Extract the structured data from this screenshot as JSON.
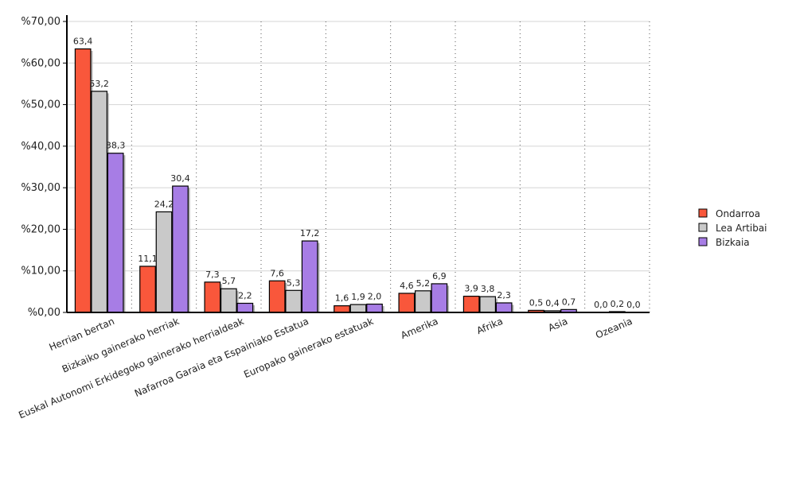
{
  "chart_data": {
    "type": "bar",
    "categories": [
      "Herrian bertan",
      "Bizkaiko gainerako herriak",
      "Euskal Autonomi Erkidegoko gainerako herrialdeak",
      "Nafarroa Garaia eta Espainiako Estatua",
      "Europako gainerako estatuak",
      "Amerika",
      "Afrika",
      "Asia",
      "Ozeania"
    ],
    "series": [
      {
        "name": "Ondarroa",
        "color": "#f9573b",
        "values": [
          63.4,
          11.1,
          7.3,
          7.6,
          1.6,
          4.6,
          3.9,
          0.5,
          0.0
        ],
        "labels": [
          "63,4",
          "11,1",
          "7,3",
          "7,6",
          "1,6",
          "4,6",
          "3,9",
          "0,5",
          "0,0"
        ]
      },
      {
        "name": "Lea Artibai",
        "color": "#c9c9c9",
        "values": [
          53.2,
          24.2,
          5.7,
          5.3,
          1.9,
          5.2,
          3.8,
          0.4,
          0.2
        ],
        "labels": [
          "53,2",
          "24,2",
          "5,7",
          "5,3",
          "1,9",
          "5,2",
          "3,8",
          "0,4",
          "0,2"
        ]
      },
      {
        "name": "Bizkaia",
        "color": "#a77de5",
        "values": [
          38.3,
          30.4,
          2.2,
          17.2,
          2.0,
          6.9,
          2.3,
          0.7,
          0.0
        ],
        "labels": [
          "38,3",
          "30,4",
          "2,2",
          "17,2",
          "2,0",
          "6,9",
          "2,3",
          "0,7",
          "0,0"
        ]
      }
    ],
    "ylim": [
      0,
      70
    ],
    "yticks": [
      0,
      10,
      20,
      30,
      40,
      50,
      60,
      70
    ],
    "ytick_labels": [
      "%0,00",
      "%10,00",
      "%20,00",
      "%30,00",
      "%40,00",
      "%50,00",
      "%60,00",
      "%70,00"
    ],
    "grid": true,
    "legend_position": "right",
    "title": "",
    "xlabel": "",
    "ylabel": ""
  }
}
